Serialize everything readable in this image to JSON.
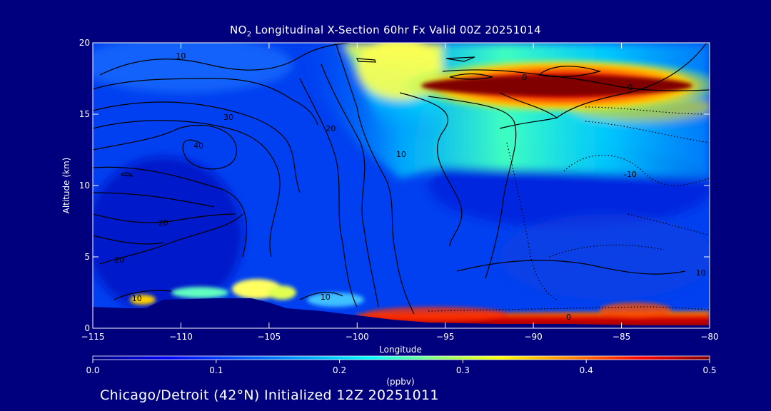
{
  "title": {
    "prefix": "NO",
    "subscript": "2",
    "rest": " Longitudinal X-Section 60hr  Fx Valid 00Z 20251014"
  },
  "footer": "Chicago/Detroit (42°N) Initialized 12Z 20251011",
  "colorbar": {
    "unit": "(ppbv)",
    "ticks": [
      "0.0",
      "0.1",
      "0.2",
      "0.3",
      "0.4",
      "0.5"
    ],
    "range": [
      0,
      0.5
    ]
  },
  "chart_data": {
    "type": "heatmap",
    "xlabel": "Longitude",
    "ylabel": "Altitude (km)",
    "xlim": [
      -115,
      -80
    ],
    "ylim": [
      0,
      20
    ],
    "xticks": [
      "-115",
      "-110",
      "-105",
      "-100",
      "-95",
      "-90",
      "-85",
      "-80"
    ],
    "yticks": [
      "0",
      "5",
      "10",
      "15",
      "20"
    ],
    "colorscale": [
      "#00007f",
      "#0000ff",
      "#0080ff",
      "#00ffff",
      "#80ff80",
      "#ffff00",
      "#ff8000",
      "#ff0000",
      "#800000"
    ],
    "field_features": [
      {
        "feature": "stratospheric maximum",
        "lon_range": [
          -95,
          -80
        ],
        "alt_km": 16.5,
        "value_ppbv": 0.5
      },
      {
        "feature": "boundary-layer maximum",
        "lon_range": [
          -99,
          -80
        ],
        "alt_km": 0.8,
        "value_ppbv": 0.5
      },
      {
        "feature": "upper-level gradient band",
        "lon_range": [
          -99,
          -90
        ],
        "alt_km_range": [
          10,
          20
        ],
        "value_ppbv": 0.25
      }
    ],
    "contour_labels": [
      {
        "text": "10",
        "lon": -110,
        "alt": 18.9
      },
      {
        "text": "0",
        "lon": -90.5,
        "alt": 17.4
      },
      {
        "text": "0",
        "lon": -84.5,
        "alt": 16.7
      },
      {
        "text": "30",
        "lon": -107.3,
        "alt": 14.6
      },
      {
        "text": "40",
        "lon": -109,
        "alt": 12.6
      },
      {
        "text": "20",
        "lon": -101.5,
        "alt": 13.8
      },
      {
        "text": "10",
        "lon": -97.5,
        "alt": 12.0
      },
      {
        "text": "-10",
        "lon": -84.5,
        "alt": 10.6
      },
      {
        "text": "20",
        "lon": -111,
        "alt": 7.2
      },
      {
        "text": "20",
        "lon": -113.5,
        "alt": 4.6
      },
      {
        "text": "10",
        "lon": -101.8,
        "alt": 2.0
      },
      {
        "text": "10",
        "lon": -112.5,
        "alt": 1.9
      },
      {
        "text": "10",
        "lon": -80.5,
        "alt": 3.7
      },
      {
        "text": "0",
        "lon": -88,
        "alt": 0.6
      }
    ],
    "terrain": [
      [
        -115,
        1.5
      ],
      [
        -113,
        1.4
      ],
      [
        -112,
        1.4
      ],
      [
        -111,
        2.0
      ],
      [
        -108,
        2.1
      ],
      [
        -106,
        2.1
      ],
      [
        -105,
        1.8
      ],
      [
        -104,
        1.4
      ],
      [
        -102,
        1.2
      ],
      [
        -100,
        0.9
      ],
      [
        -98,
        0.6
      ],
      [
        -96,
        0.4
      ],
      [
        -92,
        0.3
      ],
      [
        -88,
        0.3
      ],
      [
        -84,
        0.2
      ],
      [
        -80,
        0.2
      ]
    ]
  }
}
